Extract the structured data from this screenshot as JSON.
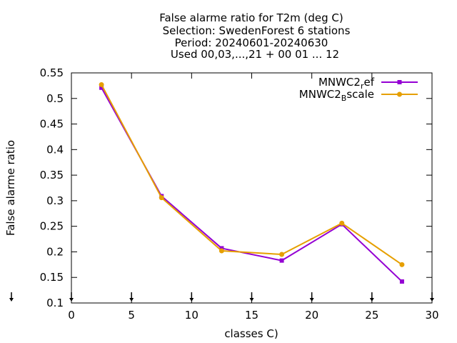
{
  "chart_data": {
    "type": "line",
    "title_lines": [
      "False alarme ratio  for T2m (deg C)",
      "Selection: SwedenForest      6 stations",
      "Period: 20240601-20240630",
      "Used 00,03,...,21 + 00 01 ... 12"
    ],
    "xlabel": "classes C)",
    "ylabel": "False alarme ratio",
    "xlim": [
      0,
      30
    ],
    "ylim": [
      0.1,
      0.55
    ],
    "xticks": [
      "0",
      "5",
      "10",
      "15",
      "20",
      "25",
      "30"
    ],
    "yticks": [
      "0.1",
      "0.15",
      "0.2",
      "0.25",
      "0.3",
      "0.35",
      "0.4",
      "0.45",
      "0.5",
      "0.55"
    ],
    "grid": false,
    "legend_position": "top-right",
    "series": [
      {
        "name_main": "MNWC2",
        "name_sub": "r",
        "name_rest": "ef",
        "color": "#9400d3",
        "x": [
          2.5,
          7.5,
          12.5,
          17.5,
          22.5,
          27.5
        ],
        "y": [
          0.521,
          0.309,
          0.207,
          0.183,
          0.254,
          0.142
        ]
      },
      {
        "name_main": "MNWC2",
        "name_sub": "B",
        "name_rest": "scale",
        "color": "#e69f00",
        "x": [
          2.5,
          7.5,
          12.5,
          17.5,
          22.5,
          27.5
        ],
        "y": [
          0.527,
          0.306,
          0.202,
          0.195,
          0.256,
          0.175
        ]
      }
    ],
    "arrow_markers_x": [
      0,
      5,
      10,
      15,
      20,
      25,
      30
    ]
  }
}
